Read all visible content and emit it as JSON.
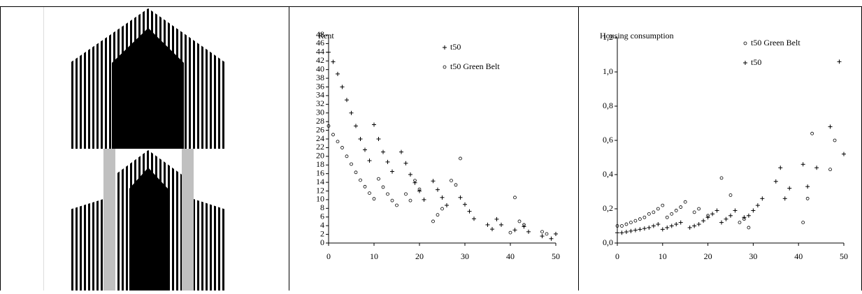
{
  "chart_data": [
    {
      "type": "scatter",
      "y_label": "Rent",
      "xlim": [
        0,
        50
      ],
      "xticks": [
        0,
        10,
        20,
        30,
        40,
        50
      ],
      "ylim": [
        0,
        48
      ],
      "yticks": [
        0,
        2,
        4,
        6,
        8,
        10,
        12,
        14,
        16,
        18,
        20,
        22,
        24,
        26,
        28,
        30,
        32,
        34,
        36,
        38,
        40,
        42,
        44,
        46,
        48
      ],
      "series": [
        {
          "name": "t50",
          "marker": "plus",
          "color": "#000000",
          "x": [
            0,
            1,
            2,
            3,
            4,
            5,
            6,
            7,
            8,
            9,
            10,
            11,
            12,
            13,
            14,
            16,
            17,
            18,
            19,
            20,
            21,
            23,
            24,
            25,
            26,
            29,
            30,
            31,
            32,
            35,
            36,
            37,
            38,
            41,
            43,
            44,
            47,
            49,
            50
          ],
          "values": [
            44,
            41.8,
            39,
            36,
            33,
            30,
            27,
            24,
            21.5,
            19,
            27.3,
            24,
            21,
            18.7,
            16.5,
            21,
            18.4,
            15.8,
            13.9,
            12,
            10,
            14.3,
            12.3,
            10.5,
            8.7,
            10.5,
            8.9,
            7.3,
            5.6,
            4.2,
            3.2,
            5.5,
            4.2,
            3,
            3.8,
            2.6,
            1.6,
            1,
            2.1
          ]
        },
        {
          "name": "t50 Green Belt",
          "marker": "circle",
          "color": "#000000",
          "x": [
            0,
            1,
            2,
            3,
            4,
            5,
            6,
            7,
            8,
            9,
            10,
            11,
            12,
            13,
            14,
            15,
            17,
            18,
            19,
            20,
            23,
            24,
            25,
            27,
            28,
            29,
            40,
            41,
            42,
            43,
            47,
            48
          ],
          "values": [
            27,
            25,
            23.4,
            22,
            20,
            18.2,
            16.3,
            14.5,
            13,
            11.5,
            10.2,
            14.8,
            12.9,
            11.3,
            9.8,
            8.7,
            11.3,
            9.8,
            14.4,
            12.4,
            5,
            6.5,
            7.9,
            14.4,
            13.4,
            19.5,
            2.4,
            10.5,
            5,
            4.2,
            2.6,
            2.1
          ]
        }
      ]
    },
    {
      "type": "scatter",
      "y_label": "Housing consumption",
      "xlim": [
        0,
        50
      ],
      "xticks": [
        0,
        10,
        20,
        30,
        40,
        50
      ],
      "ylim": [
        0,
        1.2
      ],
      "yticks": [
        {
          "value": 0,
          "label": "0,0"
        },
        {
          "value": 0.2,
          "label": "0,2"
        },
        {
          "value": 0.4,
          "label": "0,4"
        },
        {
          "value": 0.6,
          "label": "0,6"
        },
        {
          "value": 0.8,
          "label": "0,8"
        },
        {
          "value": 1,
          "label": "1,0"
        },
        {
          "value": 1.2,
          "label": "1,2"
        }
      ],
      "series": [
        {
          "name": "t50 Green Belt",
          "marker": "circle",
          "color": "#000000",
          "x": [
            0,
            1,
            2,
            3,
            4,
            5,
            6,
            7,
            8,
            9,
            10,
            11,
            12,
            13,
            14,
            15,
            17,
            18,
            20,
            23,
            25,
            27,
            28,
            29,
            41,
            42,
            43,
            47,
            48
          ],
          "values": [
            0.1,
            0.1,
            0.11,
            0.12,
            0.13,
            0.14,
            0.15,
            0.17,
            0.18,
            0.2,
            0.22,
            0.15,
            0.17,
            0.19,
            0.21,
            0.24,
            0.18,
            0.2,
            0.16,
            0.38,
            0.28,
            0.12,
            0.14,
            0.09,
            0.12,
            0.26,
            0.64,
            0.43,
            0.6
          ]
        },
        {
          "name": "t50",
          "marker": "plus",
          "color": "#000000",
          "x": [
            0,
            1,
            2,
            3,
            4,
            5,
            6,
            7,
            8,
            9,
            10,
            11,
            12,
            13,
            14,
            16,
            17,
            18,
            19,
            20,
            21,
            22,
            23,
            24,
            25,
            26,
            28,
            29,
            30,
            31,
            32,
            35,
            36,
            37,
            38,
            41,
            42,
            44,
            47,
            49,
            50
          ],
          "values": [
            0.06,
            0.06,
            0.065,
            0.07,
            0.075,
            0.08,
            0.085,
            0.09,
            0.1,
            0.11,
            0.08,
            0.09,
            0.1,
            0.11,
            0.12,
            0.09,
            0.1,
            0.11,
            0.13,
            0.15,
            0.17,
            0.19,
            0.12,
            0.14,
            0.16,
            0.19,
            0.15,
            0.16,
            0.19,
            0.22,
            0.26,
            0.36,
            0.44,
            0.26,
            0.32,
            0.46,
            0.33,
            0.44,
            0.68,
            1.06,
            0.52
          ]
        }
      ]
    }
  ]
}
